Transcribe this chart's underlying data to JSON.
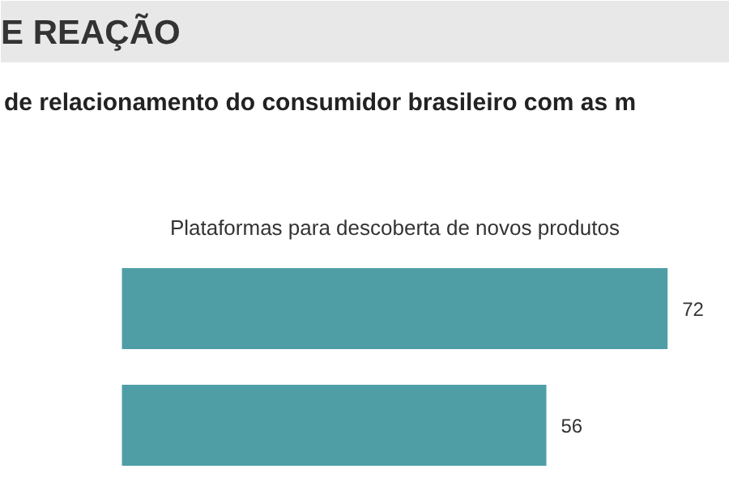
{
  "chart_data": {
    "type": "bar",
    "orientation": "horizontal",
    "title": "E REAÇÃO",
    "subtitle": "de relacionamento do consumidor brasileiro com as m",
    "annotations": [
      "Plataformas para descoberta de novos produtos"
    ],
    "categories": [
      null,
      null
    ],
    "values": [
      72,
      56
    ],
    "color": "#4f9ea6",
    "data_labels": true,
    "grid": false
  }
}
